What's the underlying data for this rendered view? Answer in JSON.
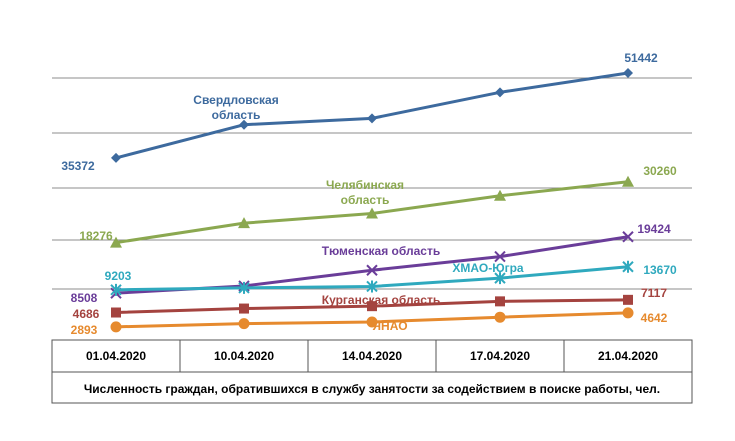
{
  "chart_data": {
    "type": "line",
    "categories": [
      "01.04.2020",
      "10.04.2020",
      "14.04.2020",
      "17.04.2020",
      "21.04.2020"
    ],
    "xlabel": "Численность граждан, обратившихся в службу занятости за содействием в поиске работы, чел.",
    "grid": true,
    "series": [
      {
        "id": "sverdlovsk",
        "name_lines": [
          "Свердловская",
          "область"
        ],
        "color": "#3D6A9E",
        "marker": "diamond",
        "values": [
          35372,
          41700,
          42900,
          47800,
          51442
        ],
        "labels": {
          "first": "35372",
          "last": "51442"
        }
      },
      {
        "id": "chelyabinsk",
        "name_lines": [
          "Челябинская",
          "область"
        ],
        "color": "#8BA850",
        "marker": "triangle",
        "values": [
          18276,
          22100,
          24000,
          27500,
          30260
        ],
        "labels": {
          "first": "18276",
          "last": "30260"
        }
      },
      {
        "id": "tyumen",
        "name_lines": [
          "Тюменская область"
        ],
        "color": "#6A3D99",
        "marker": "x",
        "values": [
          8508,
          10000,
          13000,
          15600,
          19424
        ],
        "labels": {
          "first": "8508",
          "last": "19424"
        }
      },
      {
        "id": "khmao",
        "name_lines": [
          "ХМАО-Югра"
        ],
        "color": "#2FA9BE",
        "marker": "star",
        "values": [
          9203,
          9600,
          9900,
          11500,
          13670
        ],
        "labels": {
          "first": "9203",
          "last": "13670"
        }
      },
      {
        "id": "kurgan",
        "name_lines": [
          "Курганская область"
        ],
        "color": "#A4433F",
        "marker": "square",
        "values": [
          4686,
          5300,
          5800,
          6800,
          7117
        ],
        "labels": {
          "first": "4686",
          "last": "7117"
        }
      },
      {
        "id": "yanao",
        "name_lines": [
          "ЯНАО"
        ],
        "color": "#E68A2E",
        "marker": "circle",
        "values": [
          2893,
          3300,
          3500,
          4100,
          4642
        ],
        "labels": {
          "first": "2893",
          "last": "4642"
        }
      }
    ]
  }
}
